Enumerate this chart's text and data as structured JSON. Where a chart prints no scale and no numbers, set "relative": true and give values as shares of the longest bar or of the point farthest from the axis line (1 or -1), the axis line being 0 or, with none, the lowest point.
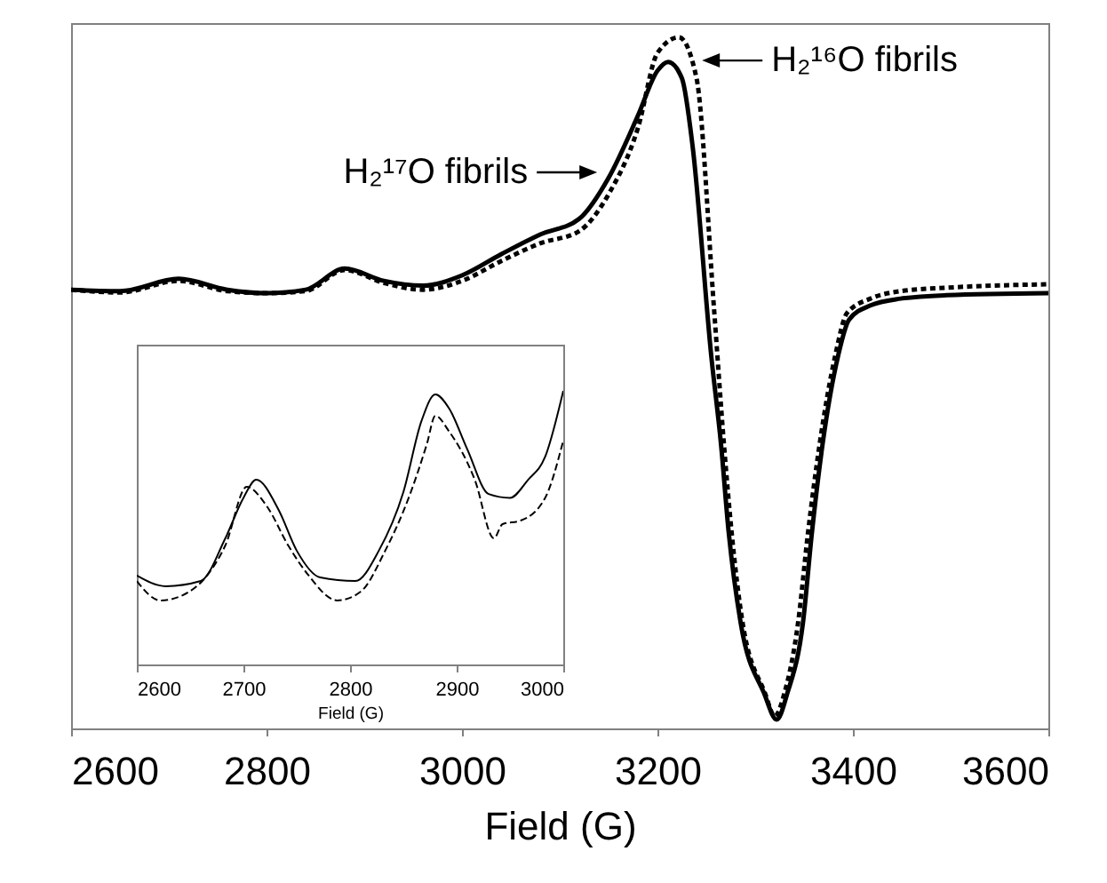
{
  "chart_data": [
    {
      "type": "line",
      "relative": true,
      "xlabel": "Field (G)",
      "xlim": [
        2600,
        3600
      ],
      "xticks": [
        2600,
        2800,
        3000,
        3200,
        3400,
        3600
      ],
      "series": [
        {
          "color": "#000000",
          "line_style": "solid",
          "x": [
            2600,
            2650,
            2710,
            2760,
            2800,
            2840,
            2880,
            2920,
            2960,
            3000,
            3040,
            3080,
            3120,
            3150,
            3180,
            3200,
            3211,
            3225,
            3236,
            3255,
            3265,
            3273,
            3285,
            3309,
            3322,
            3333,
            3349,
            3358,
            3369,
            3385,
            3396,
            3418,
            3449,
            3496,
            3600
          ],
          "values": [
            0.63,
            0.628,
            0.646,
            0.63,
            0.625,
            0.63,
            0.661,
            0.643,
            0.636,
            0.651,
            0.682,
            0.711,
            0.734,
            0.794,
            0.885,
            0.951,
            0.964,
            0.94,
            0.84,
            0.534,
            0.404,
            0.273,
            0.143,
            0.039,
            0,
            0.039,
            0.143,
            0.273,
            0.404,
            0.534,
            0.586,
            0.607,
            0.617,
            0.622,
            0.625
          ]
        },
        {
          "color": "#000000",
          "line_style": "dotted",
          "x": [
            2600,
            2650,
            2710,
            2760,
            2800,
            2840,
            2880,
            2920,
            2960,
            3000,
            3040,
            3080,
            3120,
            3150,
            3180,
            3200,
            3222,
            3240,
            3258,
            3268,
            3276,
            3287,
            3310,
            3320,
            3330,
            3344,
            3354,
            3366,
            3382,
            3394,
            3418,
            3449,
            3496,
            3600
          ],
          "values": [
            0.63,
            0.626,
            0.643,
            0.628,
            0.625,
            0.628,
            0.659,
            0.64,
            0.63,
            0.643,
            0.672,
            0.698,
            0.716,
            0.77,
            0.867,
            0.977,
            1,
            0.94,
            0.6,
            0.404,
            0.273,
            0.143,
            0.039,
            0.005,
            0.039,
            0.143,
            0.273,
            0.404,
            0.534,
            0.596,
            0.617,
            0.628,
            0.633,
            0.638
          ]
        }
      ],
      "annotations": [
        {
          "text": "H₂¹⁷O fibrils",
          "x": 3142,
          "y": 0.802
        },
        {
          "text": "H₂¹⁶O fibrils",
          "x": 3242,
          "y": 0.966
        }
      ]
    },
    {
      "type": "line",
      "relative": true,
      "xlabel": "Field (G)",
      "xlim": [
        2600,
        3000
      ],
      "xticks": [
        2600,
        2700,
        2800,
        2900,
        3000
      ],
      "series": [
        {
          "color": "#000000",
          "line_style": "solid",
          "x": [
            2600,
            2627,
            2660,
            2683,
            2700,
            2712,
            2733,
            2750,
            2772,
            2805,
            2827,
            2850,
            2867,
            2880,
            2893,
            2910,
            2930,
            2950,
            2967,
            2983,
            3000
          ],
          "values": [
            0.325,
            0.286,
            0.305,
            0.461,
            0.609,
            0.675,
            0.565,
            0.416,
            0.318,
            0.305,
            0.416,
            0.63,
            0.89,
            0.987,
            0.935,
            0.786,
            0.623,
            0.609,
            0.675,
            0.759,
            1.0
          ]
        },
        {
          "color": "#000000",
          "line_style": "dashed",
          "x": [
            2600,
            2622,
            2643,
            2667,
            2683,
            2703,
            2722,
            2742,
            2760,
            2788,
            2810,
            2833,
            2855,
            2872,
            2880,
            2893,
            2917,
            2935,
            2943,
            2960,
            2983,
            3000
          ],
          "values": [
            0.305,
            0.234,
            0.253,
            0.331,
            0.435,
            0.649,
            0.578,
            0.435,
            0.331,
            0.234,
            0.266,
            0.416,
            0.609,
            0.805,
            0.909,
            0.851,
            0.675,
            0.461,
            0.513,
            0.526,
            0.609,
            0.818
          ]
        }
      ]
    }
  ]
}
